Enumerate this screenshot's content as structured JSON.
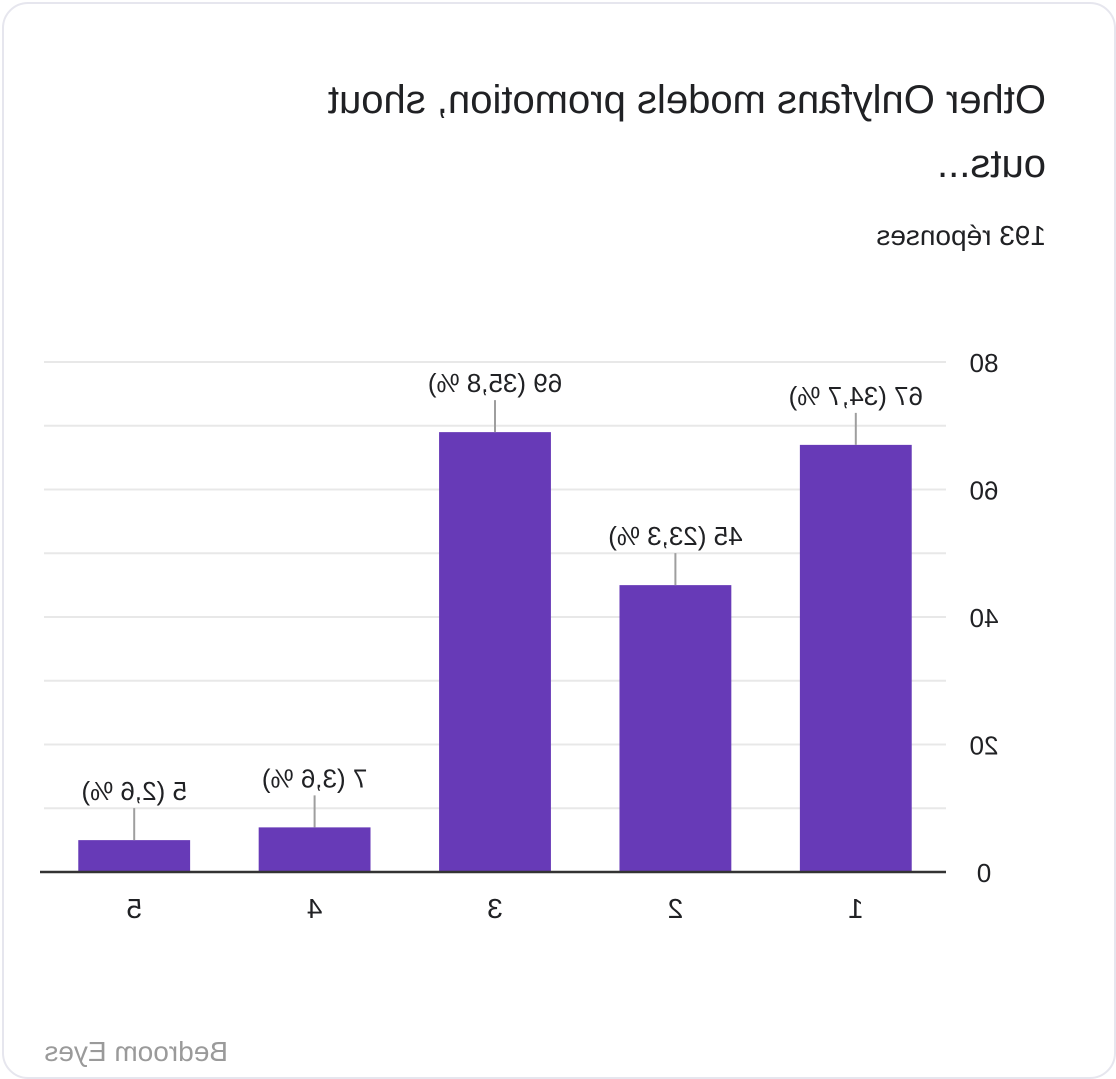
{
  "card": {
    "title": "Other Onlyfans models promotion, shout outs...",
    "subtitle": "193 réponses",
    "watermark": "Bedroom Eyes"
  },
  "colors": {
    "bar": "#673ab7",
    "grid": "#e8e8e8",
    "axis": "#333333",
    "text": "#202124"
  },
  "chart_data": {
    "type": "bar",
    "title": "Other Onlyfans models promotion, shout outs...",
    "subtitle": "193 réponses",
    "categories": [
      "1",
      "2",
      "3",
      "4",
      "5"
    ],
    "values": [
      67,
      45,
      69,
      7,
      5
    ],
    "data_labels": [
      "67 (34,7 %)",
      "45 (23,3 %)",
      "69 (35,8 %)",
      "7 (3,6 %)",
      "5 (2,6 %)"
    ],
    "y_ticks": [
      0,
      20,
      40,
      60,
      80
    ],
    "ylim": [
      0,
      80
    ],
    "grid": true,
    "mirrored_horizontally": true
  }
}
